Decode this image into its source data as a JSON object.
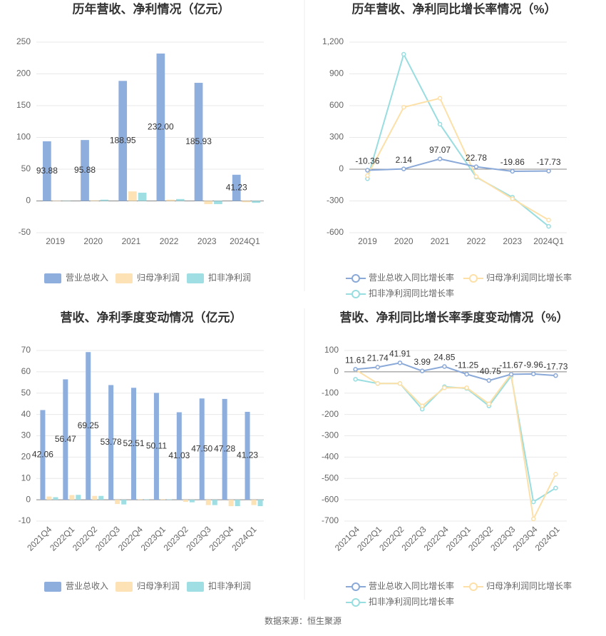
{
  "chart_data": [
    {
      "type": "bar",
      "title": "历年营收、净利情况（亿元）",
      "categories": [
        "2019",
        "2020",
        "2021",
        "2022",
        "2023",
        "2024Q1"
      ],
      "series": [
        {
          "name": "营业总收入",
          "color": "#8eaedd",
          "values": [
            93.88,
            95.88,
            188.95,
            232.0,
            185.93,
            41.23
          ],
          "value_labels": [
            "93.88",
            "95.88",
            "188.95",
            "232.00",
            "185.93",
            "41.23"
          ]
        },
        {
          "name": "归母净利润",
          "color": "#fde2b5",
          "values": [
            0.5,
            1,
            15,
            2,
            -5,
            -2
          ]
        },
        {
          "name": "扣非净利润",
          "color": "#9fdfe3",
          "values": [
            0.3,
            2,
            13,
            3,
            -5,
            -3
          ]
        }
      ],
      "ylim": [
        -50,
        250
      ],
      "yticks": [
        -50,
        0,
        50,
        100,
        150,
        200,
        250
      ],
      "grid": true
    },
    {
      "type": "line",
      "title": "历年营收、净利同比增长率情况（%）",
      "categories": [
        "2019",
        "2020",
        "2021",
        "2022",
        "2023",
        "2024Q1"
      ],
      "series": [
        {
          "name": "营业总收入同比增长率",
          "color": "#8aa9d8",
          "values": [
            -10.36,
            2.14,
            97.07,
            22.78,
            -19.86,
            -17.73
          ],
          "value_labels": [
            "-10.36",
            "2.14",
            "97.07",
            "22.78",
            "-19.86",
            "-17.73"
          ]
        },
        {
          "name": "归母净利润同比增长率",
          "color": "#fde0a8",
          "values": [
            -60,
            585,
            670,
            -70,
            -280,
            -480
          ]
        },
        {
          "name": "扣非净利润同比增长率",
          "color": "#98dde0",
          "values": [
            -90,
            1085,
            425,
            -75,
            -265,
            -540
          ]
        }
      ],
      "ylim": [
        -600,
        1200
      ],
      "yticks": [
        -600,
        -300,
        0,
        300,
        600,
        900,
        {
          "value": 1200,
          "label": "1,200"
        }
      ],
      "grid": true
    },
    {
      "type": "bar",
      "title": "营收、净利季度变动情况（亿元）",
      "categories": [
        "2021Q4",
        "2022Q1",
        "2022Q2",
        "2022Q3",
        "2022Q4",
        "2023Q1",
        "2023Q2",
        "2023Q3",
        "2023Q4",
        "2024Q1"
      ],
      "series": [
        {
          "name": "营业总收入",
          "color": "#8eaedd",
          "values": [
            42.06,
            56.47,
            69.25,
            53.78,
            52.51,
            50.11,
            41.03,
            47.5,
            47.28,
            41.23
          ],
          "value_labels": [
            "42.06",
            "56.47",
            "69.25",
            "53.78",
            "52.51",
            "50.11",
            "41.03",
            "47.50",
            "47.28",
            "41.23"
          ]
        },
        {
          "name": "归母净利润",
          "color": "#fde2b5",
          "values": [
            1.5,
            2.2,
            1.8,
            -2,
            0.3,
            0.3,
            -1,
            -2.5,
            -3,
            -2.5
          ]
        },
        {
          "name": "扣非净利润",
          "color": "#9fdfe3",
          "values": [
            1.2,
            2.3,
            1.8,
            -2.2,
            0.2,
            0.2,
            -1.2,
            -2.5,
            -3,
            -3
          ]
        }
      ],
      "ylim": [
        -10,
        70
      ],
      "yticks": [
        -10,
        0,
        10,
        20,
        30,
        40,
        50,
        60,
        70
      ],
      "grid": true
    },
    {
      "type": "line",
      "title": "营收、净利同比增长率季度变动情况（%）",
      "categories": [
        "2021Q4",
        "2022Q1",
        "2022Q2",
        "2022Q3",
        "2022Q4",
        "2023Q1",
        "2023Q2",
        "2023Q3",
        "2023Q4",
        "2024Q1"
      ],
      "series": [
        {
          "name": "营业总收入同比增长率",
          "color": "#8aa9d8",
          "values": [
            11.61,
            21.74,
            41.91,
            3.99,
            24.85,
            -11.25,
            -40.75,
            -11.67,
            -9.96,
            -17.73
          ],
          "value_labels": [
            "11.61",
            "21.74",
            "41.91",
            "3.99",
            "24.85",
            "-11.25",
            "-40.75",
            "-11.67",
            "-9.96",
            "-17.73"
          ]
        },
        {
          "name": "归母净利润同比增长率",
          "color": "#fde0a8",
          "values": [
            10,
            -55,
            -55,
            -160,
            -75,
            -75,
            -150,
            -10,
            -690,
            -480
          ]
        },
        {
          "name": "扣非净利润同比增长率",
          "color": "#98dde0",
          "values": [
            -35,
            -55,
            -55,
            -175,
            -70,
            -78,
            -160,
            -20,
            -610,
            -545
          ]
        }
      ],
      "ylim": [
        -700,
        100
      ],
      "yticks": [
        -700,
        -600,
        -500,
        -400,
        -300,
        -200,
        -100,
        0,
        100
      ],
      "grid": true
    }
  ],
  "source": "数据来源：恒生聚源"
}
